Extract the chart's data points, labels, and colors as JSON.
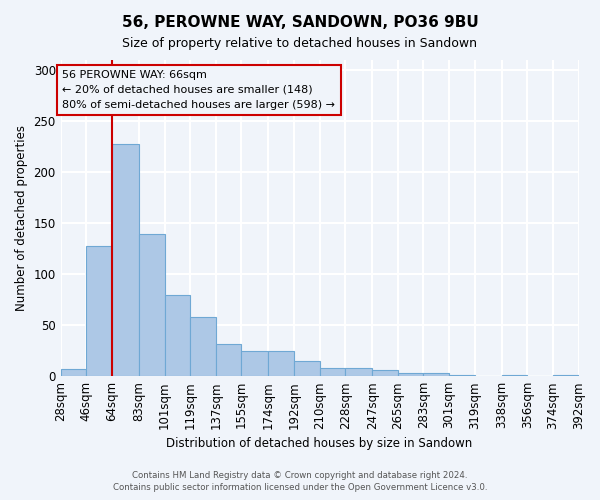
{
  "title": "56, PEROWNE WAY, SANDOWN, PO36 9BU",
  "subtitle": "Size of property relative to detached houses in Sandown",
  "xlabel": "Distribution of detached houses by size in Sandown",
  "ylabel": "Number of detached properties",
  "bar_labels": [
    "28sqm",
    "46sqm",
    "64sqm",
    "83sqm",
    "101sqm",
    "119sqm",
    "137sqm",
    "155sqm",
    "174sqm",
    "192sqm",
    "210sqm",
    "228sqm",
    "247sqm",
    "265sqm",
    "283sqm",
    "301sqm",
    "319sqm",
    "338sqm",
    "356sqm",
    "374sqm",
    "392sqm"
  ],
  "bar_values": [
    7,
    128,
    228,
    139,
    80,
    58,
    32,
    25,
    25,
    15,
    8,
    8,
    6,
    3,
    3,
    1,
    0,
    1,
    0,
    1
  ],
  "bar_color": "#adc8e6",
  "bar_edge_color": "#6fa8d4",
  "background_color": "#f0f4fa",
  "grid_color": "#ffffff",
  "vline_x": 64,
  "vline_color": "#cc0000",
  "annotation_text": "56 PEROWNE WAY: 66sqm\n← 20% of detached houses are smaller (148)\n80% of semi-detached houses are larger (598) →",
  "annotation_box_color": "#cc0000",
  "ylim": [
    0,
    310
  ],
  "bin_edges": [
    28,
    46,
    64,
    83,
    101,
    119,
    137,
    155,
    174,
    192,
    210,
    228,
    247,
    265,
    283,
    301,
    319,
    338,
    356,
    374,
    392
  ],
  "yticks": [
    0,
    50,
    100,
    150,
    200,
    250,
    300
  ],
  "footer_line1": "Contains HM Land Registry data © Crown copyright and database right 2024.",
  "footer_line2": "Contains public sector information licensed under the Open Government Licence v3.0."
}
